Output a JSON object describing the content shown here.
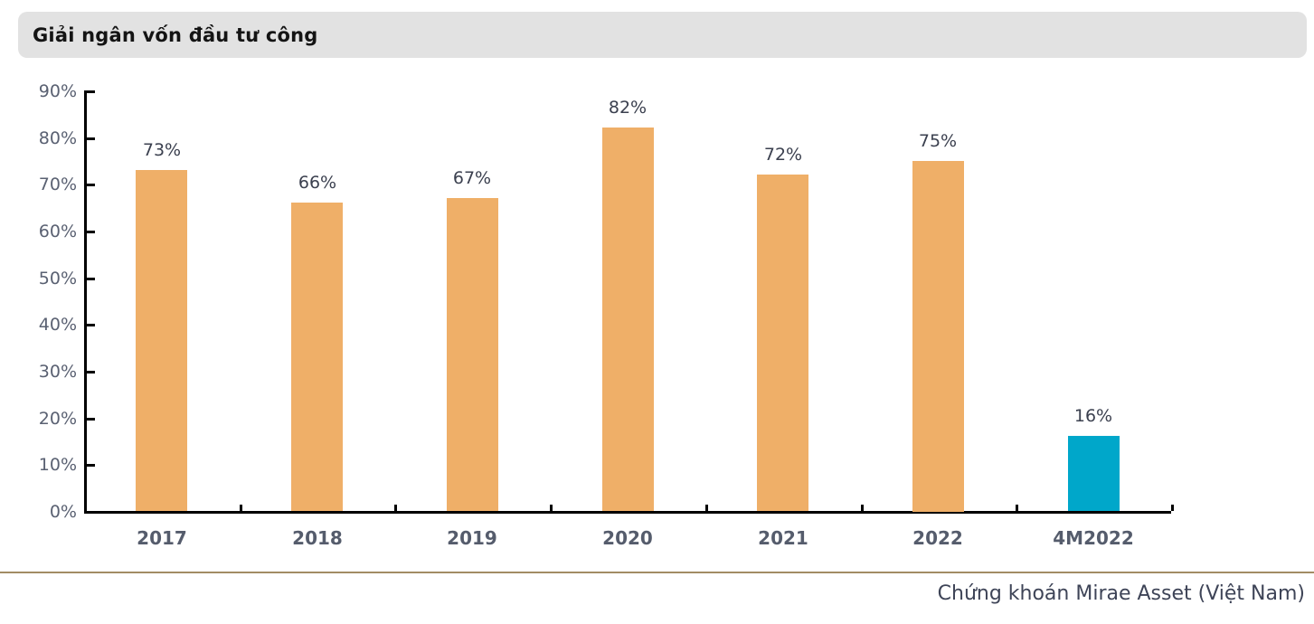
{
  "header": {
    "title": "Giải ngân vốn đầu tư công"
  },
  "footer": {
    "source": "Chứng khoán Mirae Asset (Việt Nam)"
  },
  "colors": {
    "bar_default": "#efaf68",
    "bar_highlight": "#00a7ca",
    "axis": "#000000",
    "title_bar_bg": "#e2e2e2",
    "divider": "#a28c64",
    "y_label": "#5a6172",
    "x_label": "#555c6c",
    "data_label": "#3b404f",
    "footer_text": "#3e4457"
  },
  "chart_data": {
    "type": "bar",
    "title": "Giải ngân vốn đầu tư công",
    "categories": [
      "2017",
      "2018",
      "2019",
      "2020",
      "2021",
      "2022",
      "4M2022"
    ],
    "values": [
      73,
      66,
      67,
      82,
      72,
      75,
      16
    ],
    "data_labels": [
      "73%",
      "66%",
      "67%",
      "82%",
      "72%",
      "75%",
      "16%"
    ],
    "bar_colors": [
      "#efaf68",
      "#efaf68",
      "#efaf68",
      "#efaf68",
      "#efaf68",
      "#efaf68",
      "#00a7ca"
    ],
    "xlabel": "",
    "ylabel": "",
    "ylim": [
      0,
      90
    ],
    "ytick_step": 10,
    "ytick_labels": [
      "0%",
      "10%",
      "20%",
      "30%",
      "40%",
      "50%",
      "60%",
      "70%",
      "80%",
      "90%"
    ],
    "grid": false,
    "legend": "none",
    "source": "Chứng khoán Mirae Asset (Việt Nam)"
  }
}
